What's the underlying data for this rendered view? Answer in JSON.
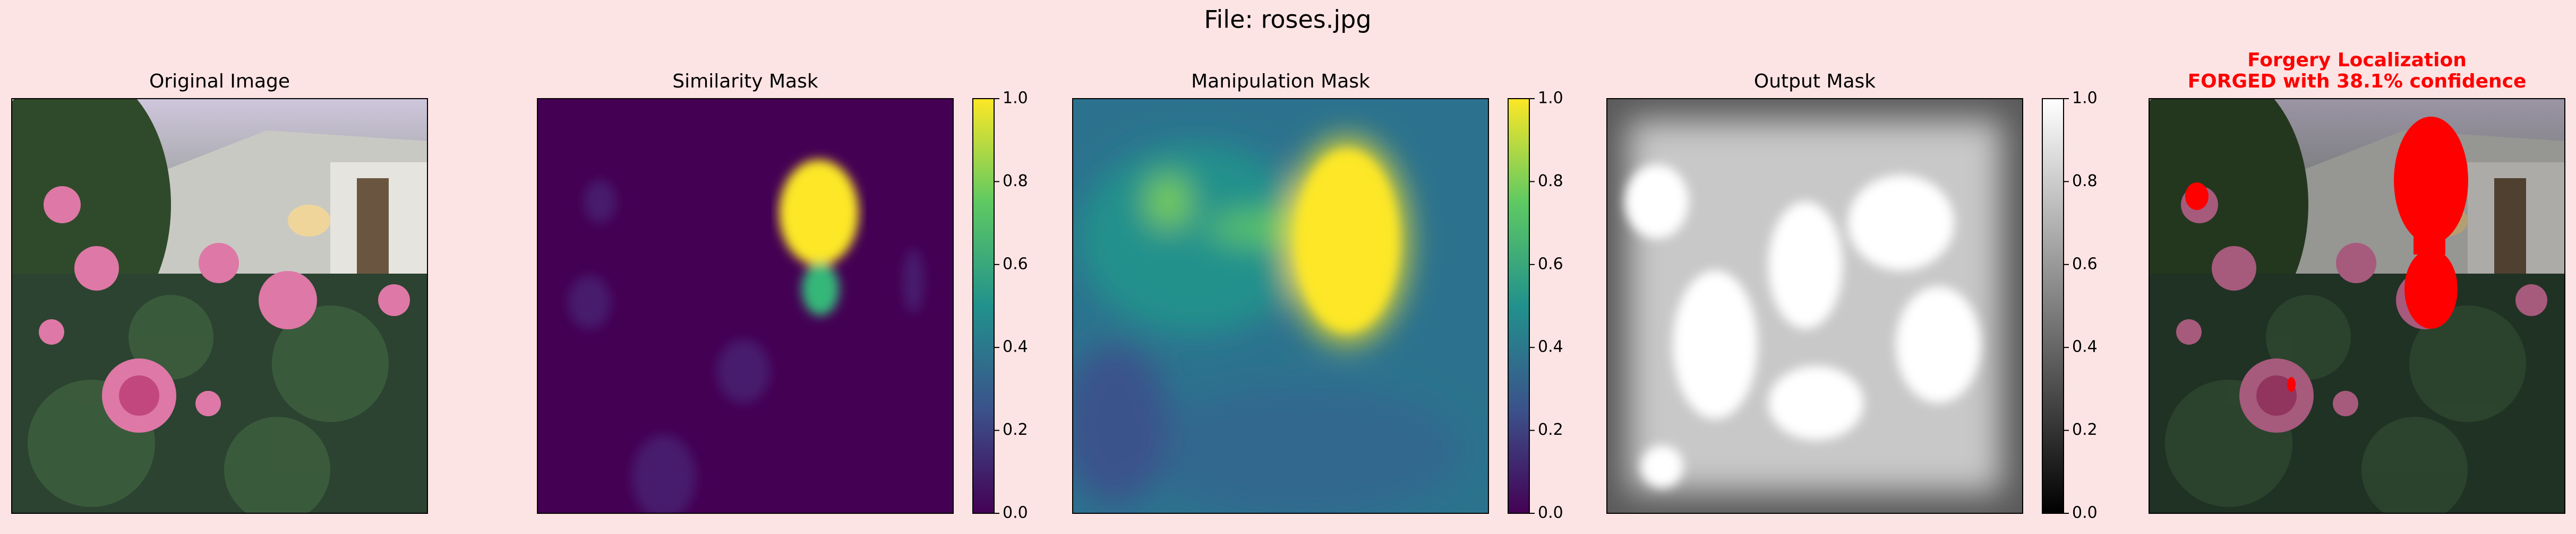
{
  "title": "File: roses.jpg",
  "panels": [
    {
      "title": [
        "Original Image"
      ]
    },
    {
      "title": [
        "Similarity Mask"
      ],
      "colorbar": {
        "range": [
          0,
          1
        ],
        "ticks": [
          {
            "value": 0,
            "label": "0.0"
          },
          {
            "value": 0.2,
            "label": "0.2"
          },
          {
            "value": 0.4,
            "label": "0.4"
          },
          {
            "value": 0.6,
            "label": "0.6"
          },
          {
            "value": 0.8,
            "label": "0.8"
          },
          {
            "value": 1,
            "label": "1.0"
          }
        ]
      }
    },
    {
      "title": [
        "Manipulation Mask"
      ],
      "colorbar": {
        "range": [
          0,
          1
        ],
        "ticks": [
          {
            "value": 0,
            "label": "0.0"
          },
          {
            "value": 0.2,
            "label": "0.2"
          },
          {
            "value": 0.4,
            "label": "0.4"
          },
          {
            "value": 0.6,
            "label": "0.6"
          },
          {
            "value": 0.8,
            "label": "0.8"
          },
          {
            "value": 1,
            "label": "1.0"
          }
        ]
      }
    },
    {
      "title": [
        "Output Mask"
      ],
      "colorbar": {
        "range": [
          0,
          1
        ],
        "ticks": [
          {
            "value": 0,
            "label": "0.0"
          },
          {
            "value": 0.2,
            "label": "0.2"
          },
          {
            "value": 0.4,
            "label": "0.4"
          },
          {
            "value": 0.6,
            "label": "0.6"
          },
          {
            "value": 0.8,
            "label": "0.8"
          },
          {
            "value": 1,
            "label": "1.0"
          }
        ]
      }
    },
    {
      "title": [
        "Forgery Localization",
        "FORGED with 38.1% confidence"
      ]
    }
  ]
}
